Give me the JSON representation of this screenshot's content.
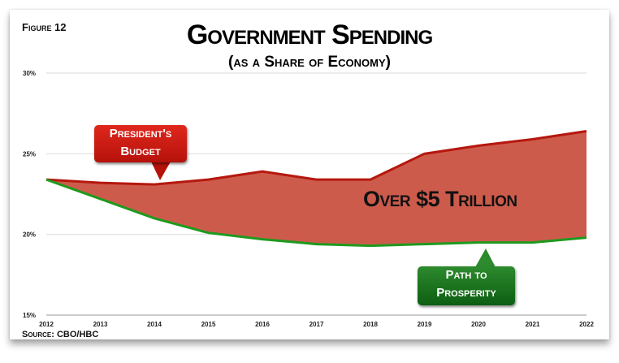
{
  "figure_label": "Figure 12",
  "source": "Source: CBO/HBC",
  "chart_data": {
    "type": "area",
    "title": "Government Spending",
    "subtitle": "(as a Share of Economy)",
    "x": [
      "2012",
      "2013",
      "2014",
      "2015",
      "2016",
      "2017",
      "2018",
      "2019",
      "2020",
      "2021",
      "2022"
    ],
    "y_ticks": [
      "30%",
      "25%",
      "20%",
      "15%"
    ],
    "ylim": [
      15,
      30
    ],
    "grid": true,
    "series": [
      {
        "name": "President's Budget",
        "color": "#b5180e",
        "values": [
          23.4,
          23.2,
          23.1,
          23.4,
          23.9,
          23.4,
          23.4,
          25.0,
          25.5,
          25.9,
          26.4
        ]
      },
      {
        "name": "Path to Prosperity",
        "color": "#1e9a1e",
        "values": [
          23.4,
          22.2,
          21.0,
          20.1,
          19.7,
          19.4,
          19.3,
          19.4,
          19.5,
          19.5,
          19.8
        ]
      }
    ],
    "fill_color": "#cd5b4c",
    "annotations": {
      "gap": "Over $5 Trillion",
      "president_line1": "President's",
      "president_line2": "Budget",
      "path_line1": "Path to",
      "path_line2": "Prosperity"
    }
  }
}
